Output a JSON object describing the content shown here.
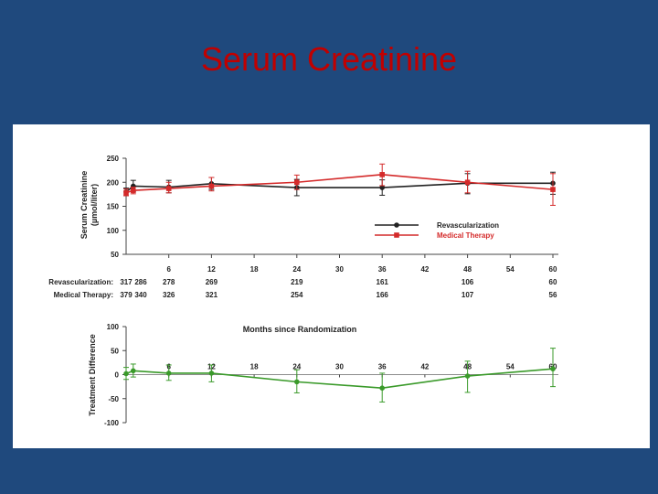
{
  "slide": {
    "title": "Serum Creatinine"
  },
  "colors": {
    "background": "#1f497d",
    "title": "#c00000",
    "revascularization": "#222222",
    "medical_therapy": "#d42a2a",
    "difference": "#3a9a2a"
  },
  "chart_data": [
    {
      "type": "line",
      "ylabel": "Serum Creatinine (µmol/liter)",
      "ylim": [
        50,
        250
      ],
      "yticks": [
        50,
        100,
        150,
        200,
        250
      ],
      "xlim": [
        0,
        60
      ],
      "xticks": [
        6,
        12,
        18,
        24,
        30,
        36,
        42,
        48,
        54,
        60
      ],
      "legend": {
        "placement": "right",
        "entries": [
          "Revascularization",
          "Medical Therapy"
        ]
      },
      "series": [
        {
          "name": "Revascularization",
          "x": [
            0,
            1,
            6,
            12,
            24,
            36,
            48,
            60
          ],
          "y": [
            180,
            192,
            190,
            197,
            189,
            189,
            198,
            198
          ],
          "err_low": [
            172,
            180,
            178,
            185,
            172,
            173,
            176,
            175
          ],
          "err_high": [
            188,
            204,
            204,
            210,
            206,
            205,
            218,
            221
          ]
        },
        {
          "name": "Medical Therapy",
          "x": [
            0,
            1,
            6,
            12,
            24,
            36,
            48,
            60
          ],
          "y": [
            178,
            183,
            187,
            192,
            200,
            216,
            200,
            185
          ],
          "err_low": [
            172,
            176,
            178,
            182,
            185,
            193,
            178,
            152
          ],
          "err_high": [
            186,
            190,
            200,
            210,
            215,
            238,
            223,
            218
          ]
        }
      ],
      "risk_table": {
        "rows": [
          {
            "label": "Revascularization:",
            "values": [
              "317",
              "286",
              "278",
              "269",
              "219",
              "161",
              "106",
              "60"
            ]
          },
          {
            "label": "Medical Therapy:",
            "values": [
              "379",
              "340",
              "326",
              "321",
              "254",
              "166",
              "107",
              "56"
            ]
          }
        ],
        "x": [
          0,
          1,
          6,
          12,
          24,
          36,
          48,
          60
        ]
      }
    },
    {
      "type": "line",
      "title": "Months since Randomization",
      "ylabel": "Treatment Difference",
      "ylim": [
        -100,
        100
      ],
      "yticks": [
        100,
        50,
        0,
        -50,
        -100
      ],
      "xlim": [
        0,
        60
      ],
      "xticks": [
        6,
        12,
        18,
        24,
        30,
        36,
        42,
        48,
        54,
        60
      ],
      "series": [
        {
          "x": [
            0,
            1,
            6,
            12,
            24,
            36,
            48,
            60
          ],
          "y": [
            2,
            8,
            3,
            3,
            -15,
            -28,
            -3,
            12
          ],
          "err_low": [
            -10,
            -5,
            -12,
            -15,
            -38,
            -57,
            -37,
            -25
          ],
          "err_high": [
            15,
            22,
            20,
            20,
            10,
            3,
            28,
            55
          ]
        }
      ]
    }
  ]
}
